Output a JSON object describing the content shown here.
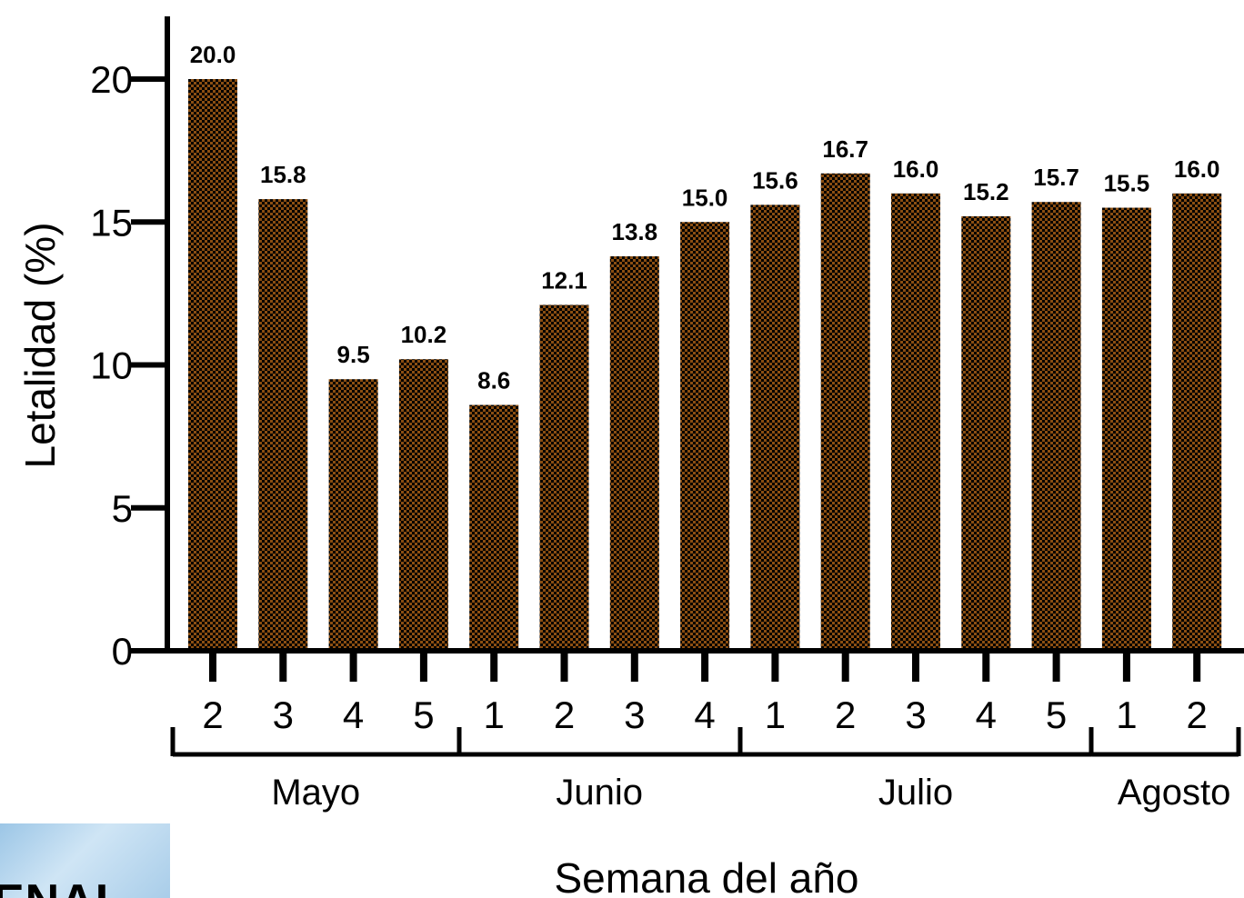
{
  "chart_data": {
    "type": "bar",
    "title": "",
    "ylabel": "Letalidad (%)",
    "xlabel": "Semana del año",
    "ylim": [
      0,
      20
    ],
    "yticks": [
      "0",
      "5",
      "10",
      "15",
      "20"
    ],
    "categories": [
      "2",
      "3",
      "4",
      "5",
      "1",
      "2",
      "3",
      "4",
      "1",
      "2",
      "3",
      "4",
      "5",
      "1",
      "2"
    ],
    "values": [
      20.0,
      15.8,
      9.5,
      10.2,
      8.6,
      12.1,
      13.8,
      15.0,
      15.6,
      16.7,
      16.0,
      15.2,
      15.7,
      15.5,
      16.0
    ],
    "value_labels": [
      "20.0",
      "15.8",
      "9.5",
      "10.2",
      "8.6",
      "12.1",
      "13.8",
      "15.0",
      "15.6",
      "16.7",
      "16.0",
      "15.2",
      "15.7",
      "15.5",
      "16.0"
    ],
    "groups": [
      {
        "label": "Mayo",
        "count": 4
      },
      {
        "label": "Junio",
        "count": 4
      },
      {
        "label": "Julio",
        "count": 5
      },
      {
        "label": "Agosto",
        "count": 2
      }
    ],
    "bar_colors": [
      "#8a4e12",
      "#000000"
    ],
    "bar_pattern": "checkerboard",
    "grid": false,
    "legend": "none"
  },
  "logo": {
    "text": "ENAL"
  }
}
